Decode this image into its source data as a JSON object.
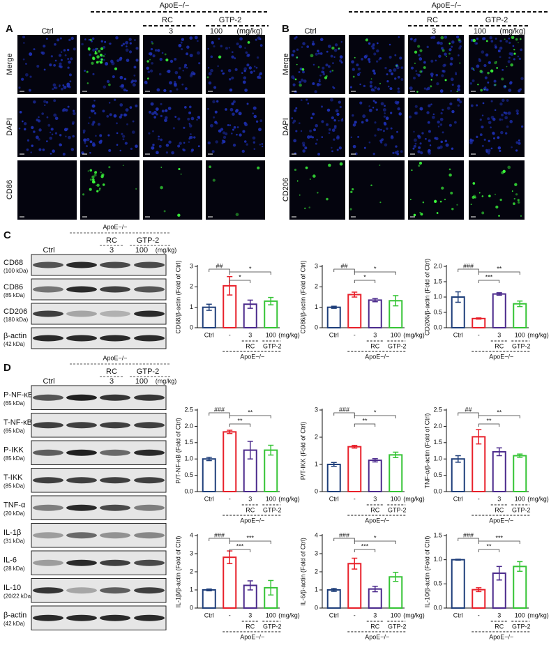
{
  "panel_a": {
    "label": "A",
    "strain": "ApoE−/−",
    "groups": [
      "RC",
      "GTP-2"
    ],
    "columns": [
      "Ctrl",
      "3",
      "100"
    ],
    "unit": "(mg/kg)",
    "rows": [
      "Merge",
      "DAPI",
      "CD86"
    ]
  },
  "panel_b": {
    "label": "B",
    "strain": "ApoE−/−",
    "groups": [
      "RC",
      "GTP-2"
    ],
    "columns": [
      "Ctrl",
      "3",
      "100"
    ],
    "unit": "(mg/kg)",
    "rows": [
      "Merge",
      "DAPI",
      "CD206"
    ]
  },
  "panel_c": {
    "label": "C",
    "strain": "ApoE−/−",
    "groups": [
      "RC",
      "GTP-2"
    ],
    "columns": [
      "Ctrl",
      "3",
      "100"
    ],
    "unit": "(mg/kg)",
    "blots": [
      {
        "name": "CD68",
        "size": "(100 kDa)"
      },
      {
        "name": "CD86",
        "size": "(85 kDa)"
      },
      {
        "name": "CD206",
        "size": "(180 kDa)"
      },
      {
        "name": "β-actin",
        "size": "(42 kDa)"
      }
    ]
  },
  "panel_d": {
    "label": "D",
    "strain": "ApoE−/−",
    "groups": [
      "RC",
      "GTP-2"
    ],
    "columns": [
      "Ctrl",
      "3",
      "100"
    ],
    "unit": "(mg/kg)",
    "blots": [
      {
        "name": "P-NF-κB",
        "size": "(65 kDa)"
      },
      {
        "name": "T-NF-κB",
        "size": "(65 kDa)"
      },
      {
        "name": "P-IKK",
        "size": "(85 kDa)"
      },
      {
        "name": "T-IKK",
        "size": "(85 kDa)"
      },
      {
        "name": "TNF-α",
        "size": "(20 kDa)"
      },
      {
        "name": "IL-1β",
        "size": "(31 kDa)"
      },
      {
        "name": "IL-6",
        "size": "(28 kDa)"
      },
      {
        "name": "IL-10",
        "size": "(20/22 kDa)"
      },
      {
        "name": "β-actin",
        "size": "(42 kDa)"
      }
    ]
  },
  "chart_data": [
    {
      "type": "bar",
      "y_label": "CD68/β-actin (Fold of Ctrl)",
      "categories": [
        "Ctrl",
        "-",
        "3",
        "100"
      ],
      "unit": "(mg/kg)",
      "groups": [
        "RC",
        "GTP-2"
      ],
      "strain": "ApoE−/−",
      "values": [
        1.0,
        2.05,
        1.15,
        1.3
      ],
      "errors": [
        0.15,
        0.45,
        0.2,
        0.18
      ],
      "colors": [
        "#1f3f7a",
        "#e8202a",
        "#4b2a8c",
        "#35c435"
      ],
      "ylim": [
        0,
        3
      ],
      "yticks": [
        0,
        1,
        2,
        3
      ],
      "annotations": [
        "##",
        "*",
        "*"
      ]
    },
    {
      "type": "bar",
      "y_label": "CD86/β-actin (Fold of Ctrl)",
      "categories": [
        "Ctrl",
        "-",
        "3",
        "100"
      ],
      "unit": "(mg/kg)",
      "groups": [
        "RC",
        "GTP-2"
      ],
      "strain": "ApoE−/−",
      "values": [
        1.0,
        1.62,
        1.35,
        1.32
      ],
      "errors": [
        0.05,
        0.12,
        0.08,
        0.25
      ],
      "colors": [
        "#1f3f7a",
        "#e8202a",
        "#4b2a8c",
        "#35c435"
      ],
      "ylim": [
        0,
        3
      ],
      "yticks": [
        0,
        1,
        2,
        3
      ],
      "annotations": [
        "##",
        "*",
        "*"
      ]
    },
    {
      "type": "bar",
      "y_label": "CD206/β-actin (Fold of Ctrl)",
      "categories": [
        "Ctrl",
        "-",
        "3",
        "100"
      ],
      "unit": "(mg/kg)",
      "groups": [
        "RC",
        "GTP-2"
      ],
      "strain": "ApoE−/−",
      "values": [
        1.0,
        0.3,
        1.1,
        0.78
      ],
      "errors": [
        0.17,
        0.02,
        0.04,
        0.09
      ],
      "colors": [
        "#1f3f7a",
        "#e8202a",
        "#4b2a8c",
        "#35c435"
      ],
      "ylim": [
        0,
        2
      ],
      "yticks": [
        {
          "value": 0,
          "label": "0.0"
        },
        {
          "value": 0.5,
          "label": "0.5"
        },
        {
          "value": 1,
          "label": "1.0"
        },
        {
          "value": 1.5,
          "label": "1.5"
        },
        {
          "value": 2,
          "label": "2.0"
        }
      ],
      "annotations": [
        "###",
        "***",
        "**"
      ]
    },
    {
      "type": "bar",
      "y_label": "P/T-NF-κB (Fold of Ctrl)",
      "categories": [
        "Ctrl",
        "-",
        "3",
        "100"
      ],
      "unit": "(mg/kg)",
      "groups": [
        "RC",
        "GTP-2"
      ],
      "strain": "ApoE−/−",
      "values": [
        1.0,
        1.83,
        1.27,
        1.27
      ],
      "errors": [
        0.05,
        0.05,
        0.27,
        0.15
      ],
      "colors": [
        "#1f3f7a",
        "#e8202a",
        "#4b2a8c",
        "#35c435"
      ],
      "ylim": [
        0,
        2.5
      ],
      "yticks": [
        {
          "value": 0,
          "label": "0.0"
        },
        {
          "value": 0.5,
          "label": "0.5"
        },
        {
          "value": 1,
          "label": "1.0"
        },
        {
          "value": 1.5,
          "label": "1.5"
        },
        {
          "value": 2,
          "label": "2.0"
        },
        2.5
      ],
      "annotations": [
        "###",
        "**",
        "**"
      ]
    },
    {
      "type": "bar",
      "y_label": "P/T-IKK (Fold of Ctrl)",
      "categories": [
        "Ctrl",
        "-",
        "3",
        "100"
      ],
      "unit": "(mg/kg)",
      "groups": [
        "RC",
        "GTP-2"
      ],
      "strain": "ApoE−/−",
      "values": [
        1.0,
        1.65,
        1.15,
        1.35
      ],
      "errors": [
        0.07,
        0.05,
        0.06,
        0.1
      ],
      "colors": [
        "#1f3f7a",
        "#e8202a",
        "#4b2a8c",
        "#35c435"
      ],
      "ylim": [
        0,
        3
      ],
      "yticks": [
        0,
        1,
        2,
        3
      ],
      "annotations": [
        "###",
        "**",
        "*"
      ]
    },
    {
      "type": "bar",
      "y_label": "TNF-α/β-actin (Fold of Ctrl)",
      "categories": [
        "Ctrl",
        "-",
        "3",
        "100"
      ],
      "unit": "(mg/kg)",
      "groups": [
        "RC",
        "GTP-2"
      ],
      "strain": "ApoE−/−",
      "values": [
        1.0,
        1.68,
        1.22,
        1.1
      ],
      "errors": [
        0.1,
        0.22,
        0.12,
        0.05
      ],
      "colors": [
        "#1f3f7a",
        "#e8202a",
        "#4b2a8c",
        "#35c435"
      ],
      "ylim": [
        0,
        2.5
      ],
      "yticks": [
        {
          "value": 0,
          "label": "0.0"
        },
        {
          "value": 0.5,
          "label": "0.5"
        },
        {
          "value": 1,
          "label": "1.0"
        },
        {
          "value": 1.5,
          "label": "1.5"
        },
        {
          "value": 2,
          "label": "2.0"
        },
        2.5
      ],
      "annotations": [
        "##",
        "**",
        "**"
      ]
    },
    {
      "type": "bar",
      "y_label": "IL-1β/β-actin (Fold of Ctrl)",
      "categories": [
        "Ctrl",
        "-",
        "3",
        "100"
      ],
      "unit": "(mg/kg)",
      "groups": [
        "RC",
        "GTP-2"
      ],
      "strain": "ApoE−/−",
      "values": [
        1.0,
        2.8,
        1.25,
        1.12
      ],
      "errors": [
        0.05,
        0.35,
        0.25,
        0.4
      ],
      "colors": [
        "#1f3f7a",
        "#e8202a",
        "#4b2a8c",
        "#35c435"
      ],
      "ylim": [
        0,
        4
      ],
      "yticks": [
        0,
        1,
        2,
        3,
        4
      ],
      "annotations": [
        "###",
        "***",
        "***"
      ]
    },
    {
      "type": "bar",
      "y_label": "IL-6/β-actin (Fold of Ctrl)",
      "categories": [
        "Ctrl",
        "-",
        "3",
        "100"
      ],
      "unit": "(mg/kg)",
      "groups": [
        "RC",
        "GTP-2"
      ],
      "strain": "ApoE−/−",
      "values": [
        1.0,
        2.45,
        1.05,
        1.72
      ],
      "errors": [
        0.08,
        0.3,
        0.15,
        0.25
      ],
      "colors": [
        "#1f3f7a",
        "#e8202a",
        "#4b2a8c",
        "#35c435"
      ],
      "ylim": [
        0,
        4
      ],
      "yticks": [
        0,
        1,
        2,
        3,
        4
      ],
      "annotations": [
        "###",
        "***",
        "*"
      ]
    },
    {
      "type": "bar",
      "y_label": "IL-10/β-actin (Fold of Ctrl)",
      "categories": [
        "Ctrl",
        "-",
        "3",
        "100"
      ],
      "unit": "(mg/kg)",
      "groups": [
        "RC",
        "GTP-2"
      ],
      "strain": "ApoE−/−",
      "values": [
        1.0,
        0.38,
        0.72,
        0.86
      ],
      "errors": [
        0.01,
        0.04,
        0.14,
        0.1
      ],
      "colors": [
        "#1f3f7a",
        "#e8202a",
        "#4b2a8c",
        "#35c435"
      ],
      "ylim": [
        0,
        1.5
      ],
      "yticks": [
        {
          "value": 0,
          "label": "0.0"
        },
        {
          "value": 0.5,
          "label": "0.5"
        },
        {
          "value": 1,
          "label": "1.0"
        },
        1.5
      ],
      "annotations": [
        "###",
        "**",
        "***"
      ]
    }
  ]
}
